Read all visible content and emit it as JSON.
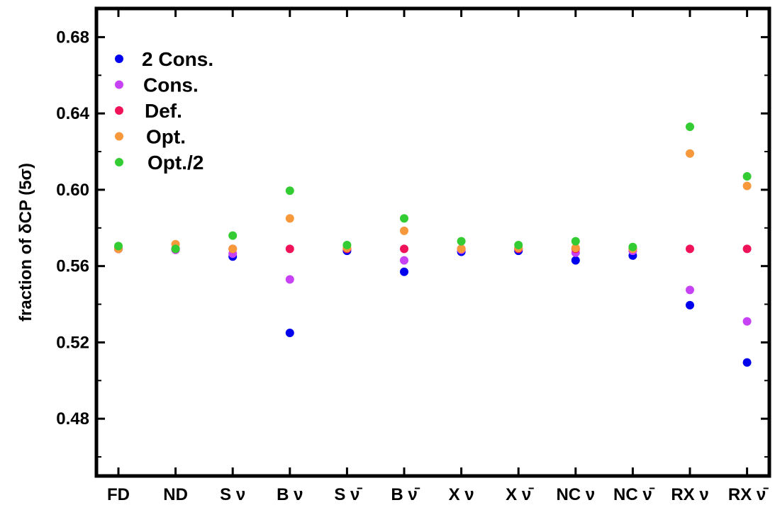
{
  "chart_data": {
    "type": "scatter",
    "title": "",
    "xlabel": "",
    "ylabel": "fraction of δCP (5σ)",
    "ylim": [
      0.45,
      0.695
    ],
    "yticks": [
      "0.48",
      "0.52",
      "0.56",
      "0.60",
      "0.64",
      "0.68"
    ],
    "categories": [
      "FD",
      "ND",
      "S ν",
      "B ν",
      "S ν̄",
      "B ν̄",
      "X ν",
      "X ν̄",
      "NC ν",
      "NC ν̄",
      "RX ν",
      "RX ν̄"
    ],
    "legend": {
      "position": "top-left"
    },
    "grid": false,
    "series": [
      {
        "name": "2 Cons.",
        "color": "#0000ee",
        "values": [
          0.569,
          0.569,
          0.565,
          0.525,
          0.568,
          0.557,
          0.5675,
          0.568,
          0.563,
          0.5655,
          0.5395,
          0.5095
        ]
      },
      {
        "name": "Cons.",
        "color": "#c842f5",
        "values": [
          0.569,
          0.5685,
          0.5665,
          0.553,
          0.569,
          0.563,
          0.5685,
          0.569,
          0.567,
          0.568,
          0.5475,
          0.531
        ]
      },
      {
        "name": "Def.",
        "color": "#f0135a",
        "values": [
          0.569,
          0.569,
          0.569,
          0.569,
          0.569,
          0.569,
          0.569,
          0.569,
          0.569,
          0.569,
          0.569,
          0.569
        ]
      },
      {
        "name": "Opt.",
        "color": "#f7983a",
        "values": [
          0.569,
          0.5715,
          0.569,
          0.585,
          0.5695,
          0.5785,
          0.569,
          0.5695,
          0.5695,
          0.569,
          0.619,
          0.602
        ]
      },
      {
        "name": "Opt./2",
        "color": "#33cc33",
        "values": [
          0.5705,
          0.569,
          0.576,
          0.5995,
          0.571,
          0.585,
          0.573,
          0.571,
          0.573,
          0.57,
          0.633,
          0.607
        ]
      }
    ]
  }
}
